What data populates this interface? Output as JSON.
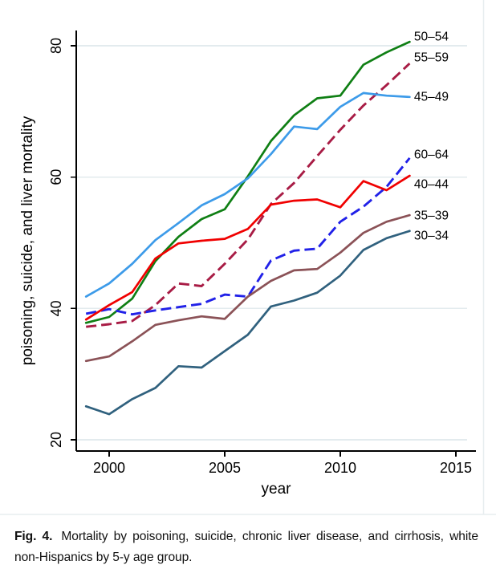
{
  "figure": {
    "caption_label": "Fig. 4.",
    "caption_text": "Mortality by poisoning, suicide, chronic liver disease, and cirrhosis, white non-Hispanics by 5-y age group."
  },
  "chart_data": {
    "type": "line",
    "title": "",
    "xlabel": "year",
    "ylabel": "poisoning, suicide, and liver mortality",
    "x": [
      1999,
      2000,
      2001,
      2002,
      2003,
      2004,
      2005,
      2006,
      2007,
      2008,
      2009,
      2010,
      2011,
      2012,
      2013
    ],
    "x_ticks": [
      2000,
      2005,
      2010,
      2015
    ],
    "y_ticks": [
      20,
      40,
      60,
      80
    ],
    "xlim": [
      1998.6,
      2016.0
    ],
    "ylim": [
      18.3,
      82.3
    ],
    "grid": "horizontal gridlines at y ticks",
    "grid_color": "#E3EBEE",
    "axis_color": "#000000",
    "legend_position": "labels at right end of each line",
    "series": [
      {
        "label": "50–54",
        "color": "#0F7F14",
        "dash": false,
        "values": [
          37.8,
          38.7,
          41.5,
          47.2,
          50.9,
          53.6,
          55.1,
          60.1,
          65.5,
          69.4,
          72.0,
          72.4,
          77.1,
          79.0,
          80.6
        ]
      },
      {
        "label": "55–59",
        "color": "#A81C45",
        "dash": true,
        "values": [
          37.2,
          37.6,
          38.1,
          40.5,
          43.8,
          43.4,
          46.8,
          50.5,
          55.9,
          59.1,
          63.2,
          67.2,
          70.9,
          74.0,
          77.3
        ]
      },
      {
        "label": "45–49",
        "color": "#3D9BE9",
        "dash": false,
        "values": [
          41.8,
          43.8,
          46.8,
          50.4,
          53.0,
          55.7,
          57.4,
          59.8,
          63.5,
          67.7,
          67.3,
          70.7,
          72.8,
          72.4,
          72.2
        ]
      },
      {
        "label": "60–64",
        "color": "#2121E8",
        "dash": true,
        "values": [
          39.2,
          39.9,
          39.1,
          39.7,
          40.2,
          40.7,
          42.1,
          41.8,
          47.3,
          48.8,
          49.1,
          53.2,
          55.5,
          58.5,
          62.9
        ]
      },
      {
        "label": "40–44",
        "color": "#F00000",
        "dash": false,
        "values": [
          38.3,
          40.5,
          42.5,
          47.6,
          49.9,
          50.3,
          50.6,
          52.1,
          55.8,
          56.4,
          56.6,
          55.4,
          59.4,
          58.0,
          60.2
        ]
      },
      {
        "label": "35–39",
        "color": "#8B5257",
        "dash": false,
        "values": [
          32.0,
          32.7,
          35.0,
          37.5,
          38.2,
          38.8,
          38.4,
          41.8,
          44.2,
          45.8,
          46.0,
          48.5,
          51.5,
          53.2,
          54.2
        ]
      },
      {
        "label": "30–34",
        "color": "#30617E",
        "dash": false,
        "values": [
          25.1,
          23.9,
          26.2,
          27.9,
          31.2,
          31.0,
          33.5,
          36.0,
          40.3,
          41.2,
          42.4,
          45.0,
          48.9,
          50.7,
          51.8
        ]
      }
    ]
  }
}
